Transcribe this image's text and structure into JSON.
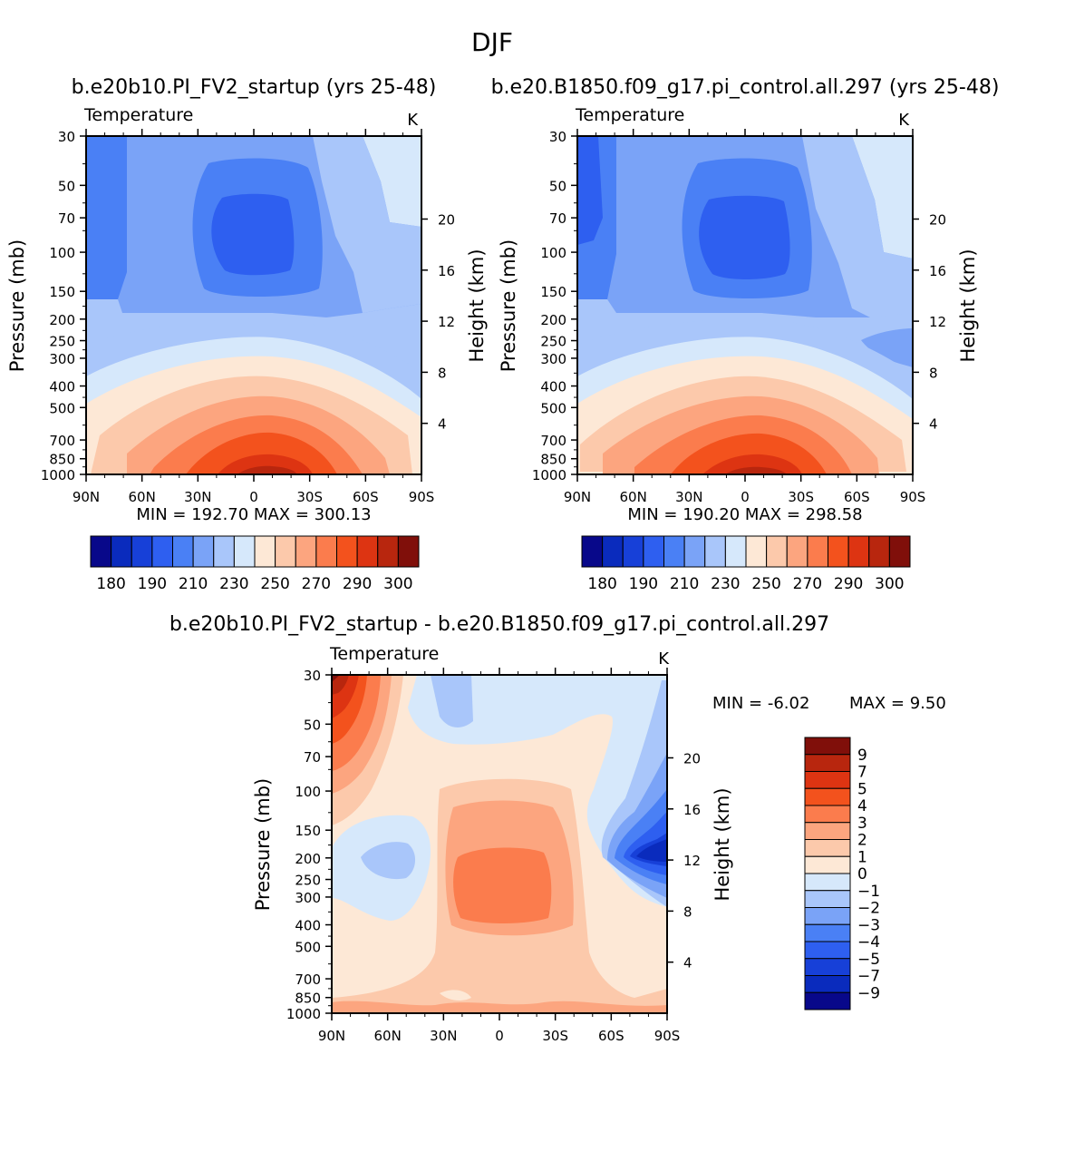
{
  "title": "DJF",
  "shared": {
    "field_label": "Temperature",
    "units": "K",
    "ylabel_left": "Pressure (mb)",
    "ylabel_right": "Height (km)",
    "pressure_ticks": [
      30,
      50,
      70,
      100,
      150,
      200,
      250,
      300,
      400,
      500,
      700,
      850,
      1000
    ],
    "height_ticks": [
      20,
      16,
      12,
      8,
      4
    ],
    "lat_ticks": [
      "90N",
      "60N",
      "30N",
      "0",
      "30S",
      "60S",
      "90S"
    ]
  },
  "chart_data": [
    {
      "type": "heatmap",
      "subtitle": "b.e20b10.PI_FV2_startup (yrs 25-48)",
      "stats": "MIN = 192.70   MAX = 300.13",
      "min": 192.7,
      "max": 300.13,
      "colorbar_labels": [
        "180",
        "190",
        "210",
        "230",
        "250",
        "270",
        "290",
        "300"
      ],
      "contour_levels": [
        180,
        185,
        190,
        200,
        210,
        220,
        230,
        240,
        250,
        260,
        270,
        280,
        290,
        295,
        300
      ],
      "lat_range": [
        90,
        -90
      ],
      "pressure_range": [
        30,
        1000
      ]
    },
    {
      "type": "heatmap",
      "subtitle": "b.e20.B1850.f09_g17.pi_control.all.297 (yrs 25-48)",
      "stats": "MIN = 190.20   MAX = 298.58",
      "min": 190.2,
      "max": 298.58,
      "colorbar_labels": [
        "180",
        "190",
        "210",
        "230",
        "250",
        "270",
        "290",
        "300"
      ],
      "contour_levels": [
        180,
        185,
        190,
        200,
        210,
        220,
        230,
        240,
        250,
        260,
        270,
        280,
        290,
        295,
        300
      ],
      "lat_range": [
        90,
        -90
      ],
      "pressure_range": [
        30,
        1000
      ]
    },
    {
      "type": "heatmap",
      "subtitle": "b.e20b10.PI_FV2_startup - b.e20.B1850.f09_g17.pi_control.all.297",
      "stats_min": "MIN =   -6.02",
      "stats_max": "MAX =    9.50",
      "min": -6.02,
      "max": 9.5,
      "colorbar_labels": [
        "9",
        "7",
        "5",
        "4",
        "3",
        "2",
        "1",
        "0",
        "-1",
        "-2",
        "-3",
        "-4",
        "-5",
        "-7",
        "-9"
      ],
      "lat_range": [
        90,
        -90
      ],
      "pressure_range": [
        30,
        1000
      ]
    }
  ],
  "colors": {
    "temp_scale": [
      "#08088a",
      "#0a2bbd",
      "#1740d8",
      "#2e5ff0",
      "#4a80f5",
      "#7aa3f7",
      "#a9c6fa",
      "#d6e8fb",
      "#fde8d6",
      "#fcc9ab",
      "#fca57f",
      "#fb7c4d",
      "#f3521d",
      "#dd3412",
      "#b8260e",
      "#800f0a"
    ],
    "diff_scale": [
      "#800f0a",
      "#b8260e",
      "#dd3412",
      "#f3521d",
      "#fb7c4d",
      "#fca57f",
      "#fcc9ab",
      "#fde8d6",
      "#d6e8fb",
      "#a9c6fa",
      "#7aa3f7",
      "#4a80f5",
      "#2e5ff0",
      "#1740d8",
      "#0a2bbd",
      "#08088a"
    ]
  }
}
